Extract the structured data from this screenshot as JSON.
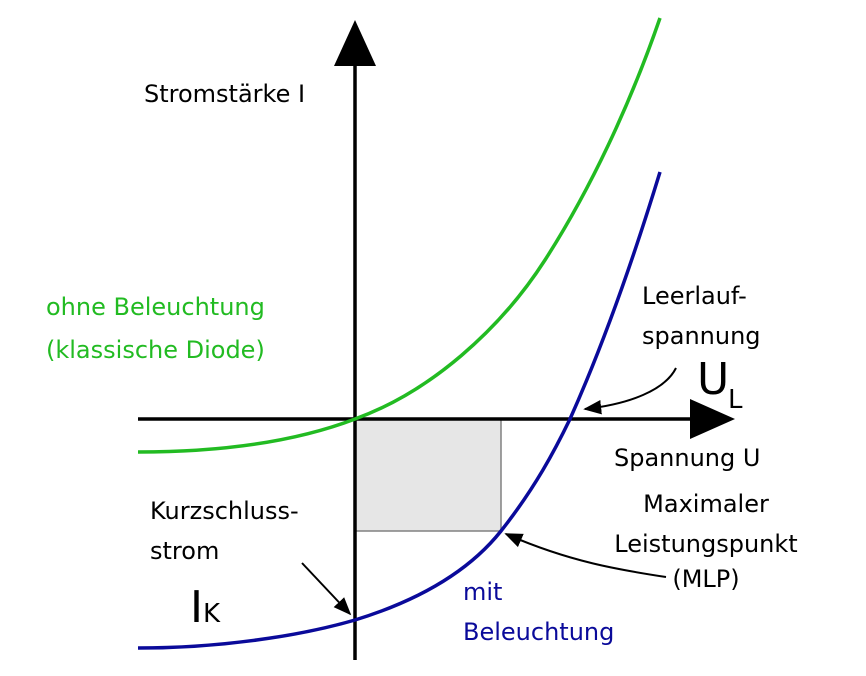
{
  "axes": {
    "y_label": "Stromstärke I",
    "x_label": "Spannung U"
  },
  "curves": {
    "dark": {
      "label_line1": "ohne Beleuchtung",
      "label_line2": "(klassische Diode)",
      "color": "#22bb22"
    },
    "light": {
      "label_line1": "mit",
      "label_line2": "Beleuchtung",
      "color": "#0a0a9a"
    }
  },
  "annotations": {
    "open_circuit": {
      "line1": "Leerlauf-",
      "line2": "spannung",
      "symbol": "U",
      "subscript": "L"
    },
    "short_circuit": {
      "line1": "Kurzschluss-",
      "line2": "strom",
      "symbol": "I",
      "subscript": "K"
    },
    "mpp": {
      "line1": "Maximaler",
      "line2": "Leistungspunkt",
      "line3": "(MLP)"
    }
  },
  "colors": {
    "axis": "#000000",
    "power_rect_fill": "#e6e6e6",
    "power_rect_stroke": "#808080"
  }
}
